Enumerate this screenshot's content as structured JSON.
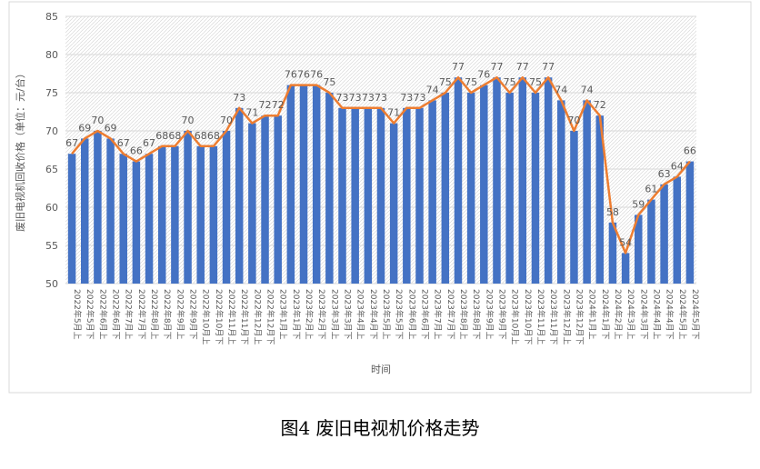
{
  "chart_data": {
    "type": "bar",
    "y_label": "废旧电视机回收价格（单位：元/台）",
    "x_label": "时间",
    "caption": "图4  废旧电视机价格走势",
    "categories": [
      "2022年5月上",
      "2022年5月下",
      "2022年6月上",
      "2022年6月下",
      "2022年7月上",
      "2022年7月下",
      "2022年8月上",
      "2022年8月下",
      "2022年9月上",
      "2022年9月下",
      "2022年10月上",
      "2022年10月下",
      "2022年11月上",
      "2022年11月下",
      "2022年12月上",
      "2022年12月下",
      "2023年1月上",
      "2023年1月下",
      "2023年2月上",
      "2023年2月下",
      "2023年3月上",
      "2023年3月下",
      "2023年4月上",
      "2023年4月下",
      "2023年5月上",
      "2023年5月下",
      "2023年6月上",
      "2023年6月下",
      "2023年7月上",
      "2023年7月下",
      "2023年8月上",
      "2023年8月下",
      "2023年9月上",
      "2023年9月下",
      "2023年10月上",
      "2023年10月下",
      "2023年11月上",
      "2023年11月下",
      "2023年12月上",
      "2023年12月下",
      "2024年1月上",
      "2024年1月下",
      "2024年2月上",
      "2024年3月上",
      "2024年3月下",
      "2024年4月上",
      "2024年4月下",
      "2024年5月上",
      "2024年5月下"
    ],
    "values": [
      67,
      69,
      70,
      69,
      67,
      66,
      67,
      68,
      68,
      70,
      68,
      68,
      70,
      73,
      71,
      72,
      72,
      76,
      76,
      76,
      75,
      73,
      73,
      73,
      73,
      71,
      73,
      73,
      74,
      75,
      77,
      75,
      76,
      77,
      75,
      77,
      75,
      77,
      74,
      70,
      74,
      72,
      58,
      54,
      59,
      61,
      63,
      64,
      66
    ],
    "bar_color": "#4472c4",
    "line_color": "#ed7d31",
    "ylim": [
      50,
      85
    ],
    "yticks": [
      50,
      55,
      60,
      65,
      70,
      75,
      80,
      85
    ],
    "grid": true
  }
}
